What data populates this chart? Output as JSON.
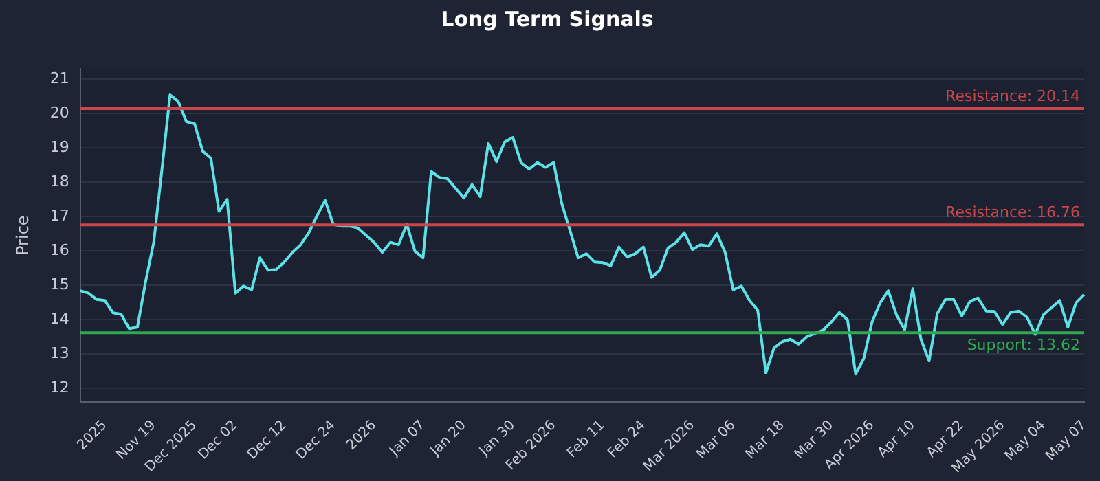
{
  "chart_data": {
    "type": "line",
    "title": "Long Term Signals",
    "ylabel": "Price",
    "categories": [
      null,
      null,
      null,
      "2025",
      null,
      null,
      null,
      null,
      null,
      "Nov 19",
      null,
      null,
      null,
      null,
      "Dec 2025",
      null,
      null,
      null,
      null,
      "Dec 02",
      null,
      null,
      null,
      null,
      null,
      "Dec 12",
      null,
      null,
      null,
      null,
      null,
      "Dec 24",
      null,
      null,
      null,
      null,
      "2026",
      null,
      null,
      null,
      null,
      null,
      "Jan 07",
      null,
      null,
      null,
      null,
      "Jan 20",
      null,
      null,
      null,
      null,
      null,
      "Jan 30",
      null,
      null,
      null,
      null,
      "Feb 2026",
      null,
      null,
      null,
      null,
      null,
      "Feb 11",
      null,
      null,
      null,
      null,
      "Feb 24",
      null,
      null,
      null,
      null,
      null,
      "Mar 2026",
      null,
      null,
      null,
      null,
      "Mar 06",
      null,
      null,
      null,
      null,
      null,
      "Mar 18",
      null,
      null,
      null,
      null,
      null,
      "Mar 30",
      null,
      null,
      null,
      null,
      "Apr 2026",
      null,
      null,
      null,
      null,
      "Apr 10",
      null,
      null,
      null,
      null,
      null,
      "Apr 22",
      null,
      null,
      null,
      null,
      "May 2026",
      null,
      null,
      null,
      null,
      "May 04",
      null,
      null,
      null,
      null,
      "May 07"
    ],
    "series": [
      {
        "color": "#5ce1e6",
        "values": [
          14.84,
          14.77,
          14.59,
          14.56,
          14.2,
          14.16,
          13.74,
          13.78,
          15.1,
          16.25,
          18.36,
          20.54,
          20.35,
          19.76,
          19.7,
          18.9,
          18.7,
          17.15,
          17.5,
          14.77,
          14.98,
          14.87,
          15.8,
          15.44,
          15.46,
          15.68,
          15.96,
          16.18,
          16.53,
          17.02,
          17.47,
          16.77,
          16.72,
          16.72,
          16.67,
          16.46,
          16.25,
          15.96,
          16.25,
          16.18,
          16.78,
          15.99,
          15.8,
          18.31,
          18.14,
          18.1,
          17.82,
          17.54,
          17.93,
          17.58,
          19.13,
          18.6,
          19.17,
          19.3,
          18.57,
          18.38,
          18.57,
          18.43,
          18.57,
          17.37,
          16.6,
          15.8,
          15.92,
          15.68,
          15.66,
          15.57,
          16.11,
          15.82,
          15.92,
          16.11,
          15.23,
          15.44,
          16.08,
          16.25,
          16.53,
          16.04,
          16.18,
          16.14,
          16.5,
          15.96,
          14.87,
          14.98,
          14.56,
          14.28,
          12.45,
          13.18,
          13.36,
          13.43,
          13.29,
          13.5,
          13.6,
          13.69,
          13.93,
          14.21,
          14.0,
          12.42,
          12.87,
          13.93,
          14.49,
          14.84,
          14.14,
          13.71,
          14.9,
          13.43,
          12.8,
          14.18,
          14.59,
          14.59,
          14.11,
          14.53,
          14.63,
          14.25,
          14.24,
          13.86,
          14.21,
          14.25,
          14.07,
          13.57,
          14.14,
          14.35,
          14.56,
          13.78,
          14.49,
          14.73
        ]
      }
    ],
    "ylim": [
      11.6,
      21.3
    ],
    "yticks": [
      12,
      13,
      14,
      15,
      16,
      17,
      18,
      19,
      20,
      21
    ],
    "grid": "y",
    "legend": false,
    "marker": "none",
    "line_style": "solid",
    "ref_lines": [
      {
        "axis": "y",
        "value": 20.14,
        "label": "Resistance: 20.14",
        "color": "#c9464c"
      },
      {
        "axis": "y",
        "value": 16.76,
        "label": "Resistance: 16.76",
        "color": "#c9464c"
      },
      {
        "axis": "y",
        "value": 13.62,
        "label": "Support: 13.62",
        "color": "#2fa84f"
      }
    ]
  }
}
